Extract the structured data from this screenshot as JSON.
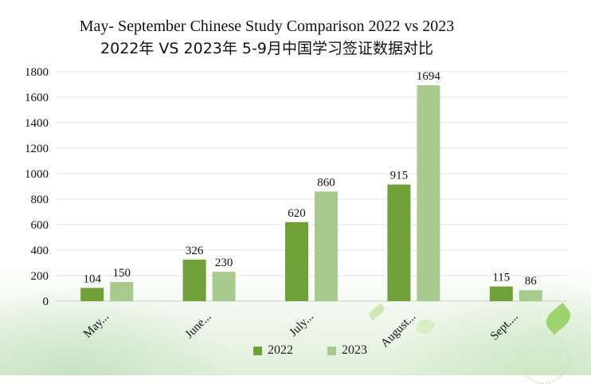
{
  "chart_data": {
    "type": "bar",
    "title": "May- September Chinese Study Comparison 2022 vs 2023",
    "subtitle": "2022年 VS 2023年 5-9月中国学习签证数据对比",
    "categories": [
      "May...",
      "June...",
      "July...",
      "August...",
      "Sept...."
    ],
    "series": [
      {
        "name": "2022",
        "color": "#6fa03a",
        "values": [
          104,
          326,
          620,
          915,
          115
        ]
      },
      {
        "name": "2023",
        "color": "#a8ca8e",
        "values": [
          150,
          230,
          860,
          1694,
          86
        ]
      }
    ],
    "y_ticks": [
      0,
      200,
      400,
      600,
      800,
      1000,
      1200,
      1400,
      1600,
      1800
    ],
    "ylim": [
      0,
      1800
    ],
    "grid": true,
    "legend_position": "bottom"
  }
}
